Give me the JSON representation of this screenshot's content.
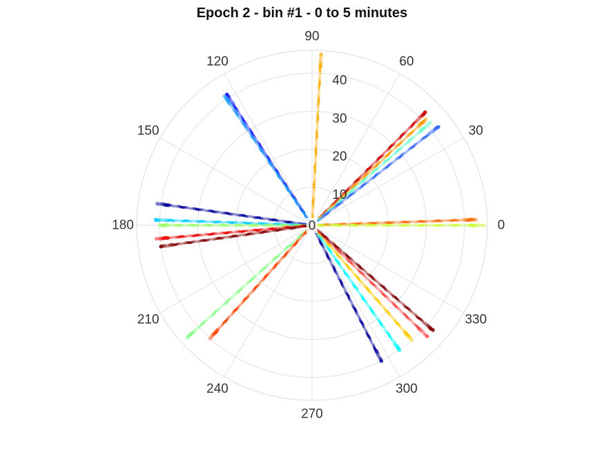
{
  "chart_data": {
    "type": "scatter",
    "projection": "polar",
    "title": "Epoch 2 - bin #1 - 0 to 5 minutes",
    "theta_unit": "degrees",
    "theta_ticks": [
      "0",
      "30",
      "60",
      "90",
      "120",
      "150",
      "180",
      "210",
      "240",
      "270",
      "300",
      "330"
    ],
    "r_ticks": [
      "0",
      "10",
      "20",
      "30",
      "40"
    ],
    "rlim": [
      0,
      46
    ],
    "grid": true,
    "colormap": "jet",
    "series": [
      {
        "theta": 87,
        "r_max": 45,
        "color": "#ffaa00"
      },
      {
        "theta": 45,
        "r_max": 42,
        "color": "#cc0000"
      },
      {
        "theta": 43,
        "r_max": 41,
        "color": "#ff9900"
      },
      {
        "theta": 41,
        "r_max": 41,
        "color": "#66ffcc"
      },
      {
        "theta": 38,
        "r_max": 42,
        "color": "#3366ff"
      },
      {
        "theta": 2,
        "r_max": 43,
        "color": "#ff6600"
      },
      {
        "theta": 0,
        "r_max": 45,
        "color": "#ccff33"
      },
      {
        "theta": 123,
        "r_max": 41,
        "color": "#1a1aff"
      },
      {
        "theta": 124,
        "r_max": 41,
        "color": "#1a99ff"
      },
      {
        "theta": 172,
        "r_max": 41,
        "color": "#000099"
      },
      {
        "theta": 178,
        "r_max": 41,
        "color": "#00ccff"
      },
      {
        "theta": 180,
        "r_max": 40,
        "color": "#99ff66"
      },
      {
        "theta": 185,
        "r_max": 41,
        "color": "#ee0000"
      },
      {
        "theta": 188,
        "r_max": 40,
        "color": "#800000"
      },
      {
        "theta": 222,
        "r_max": 44,
        "color": "#88ff88"
      },
      {
        "theta": 228,
        "r_max": 40,
        "color": "#ff4400"
      },
      {
        "theta": 297,
        "r_max": 40,
        "color": "#000099"
      },
      {
        "theta": 305,
        "r_max": 40,
        "color": "#00ffff"
      },
      {
        "theta": 311,
        "r_max": 40,
        "color": "#ffcc00"
      },
      {
        "theta": 316,
        "r_max": 42,
        "color": "#ff4444"
      },
      {
        "theta": 319,
        "r_max": 42,
        "color": "#800000"
      }
    ]
  }
}
